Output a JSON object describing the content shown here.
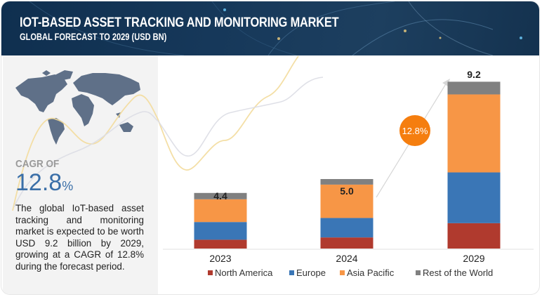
{
  "header": {
    "title": "IOT-BASED ASSET TRACKING AND MONITORING MARKET",
    "subtitle": "GLOBAL FORECAST TO 2029 (USD BN)"
  },
  "left_panel": {
    "map_icon": "world-map-icon",
    "cagr_label": "CAGR OF",
    "cagr_value": "12.8",
    "cagr_unit": "%",
    "description": "The global IoT-based asset tracking and monitoring market is expected to be worth USD 9.2 billion by 2029, growing at a CAGR of 12.8% during the forecast period."
  },
  "colors": {
    "north_america": "#b03a2e",
    "europe": "#3a76b6",
    "asia_pacific": "#f79646",
    "rest_of_world": "#808080",
    "cagr_badge": "#f57e0f",
    "cagr_text": "#3a6fa8"
  },
  "chart_data": {
    "type": "bar",
    "stacked": true,
    "title": "IoT-Based Asset Tracking and Monitoring Market, Global Forecast to 2029 (USD BN)",
    "xlabel": "",
    "ylabel": "USD BN",
    "categories": [
      "2023",
      "2024",
      "2029"
    ],
    "totals": [
      4.4,
      5.0,
      9.2
    ],
    "total_labels": [
      "4.4",
      "5.0",
      "9.2"
    ],
    "series": [
      {
        "name": "North America",
        "color": "#b03a2e",
        "values": [
          0.7,
          0.8,
          1.4
        ]
      },
      {
        "name": "Europe",
        "color": "#3a76b6",
        "values": [
          1.4,
          1.4,
          2.8
        ]
      },
      {
        "name": "Asia Pacific",
        "color": "#f79646",
        "values": [
          1.8,
          2.4,
          4.3
        ]
      },
      {
        "name": "Rest of the World",
        "color": "#808080",
        "values": [
          0.5,
          0.4,
          0.7
        ]
      }
    ],
    "annotation": {
      "text": "12.8%",
      "type": "cagr-arrow",
      "from": "2024",
      "to": "2029"
    },
    "legend": "bottom",
    "grid": false,
    "axis_scale_note": "bars drawn not to scale"
  }
}
